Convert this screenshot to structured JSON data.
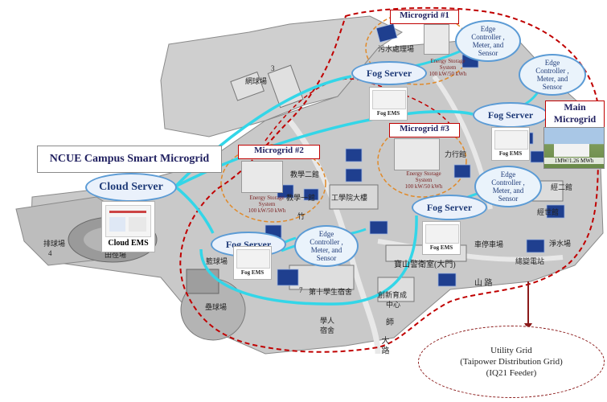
{
  "title": "NCUE Campus Smart Microgrid",
  "cloud": {
    "server": "Cloud Server",
    "ems": "Cloud EMS"
  },
  "fog_server_label": "Fog Server",
  "fog_ems_label": "Fog EMS",
  "microgrids": {
    "mg1": "Microgrid #1",
    "mg2": "Microgrid #2",
    "mg3": "Microgrid #3",
    "main": [
      "Main",
      "Microgrid"
    ]
  },
  "storage": {
    "mg1": [
      "Energy Storage",
      "System",
      "100 kW/50 kWh"
    ],
    "mg2": [
      "Energy Storage",
      "System",
      "100 kW/50 kWh"
    ],
    "mg3": [
      "Energy Storage",
      "System",
      "100 kW/50 kWh"
    ]
  },
  "edge_controller": [
    "Edge",
    "Controller ,",
    "Meter, and",
    "Sensor"
  ],
  "main_microgrid_caption": "1MW/1.26 MWh",
  "utility": [
    "Utility Grid",
    "(Taipower Distribution Grid)",
    "(IQ21 Feeder)"
  ],
  "map_labels": {
    "n3": "3",
    "n4": "4",
    "n5": "5",
    "n7": "7",
    "tennis": "網球場",
    "wastewater": "污水處理場",
    "admin": "力行館",
    "teach1": "教學一館",
    "teach2": "教學二館",
    "engineering": "工學院大樓",
    "dorm10": "第十學生宿舍",
    "baseball": "排球場",
    "track": "田徑場",
    "softball": "壘球場",
    "basketball": "籃球場",
    "innovation": [
      "創新育成",
      "中心"
    ],
    "student_dorm": [
      "學人",
      "宿舍"
    ],
    "gate": "寶山警衛室(大門)",
    "parking": "車停車場",
    "mountain_road": "山 路",
    "bamboo": "竹",
    "main_road": "大 路",
    "pump": "抽水站",
    "jinghua": "經世館",
    "jingyi": "經二館",
    "wash": "淨水場",
    "substation": "總變電站",
    "teacher": "師"
  },
  "colors": {
    "fog_link": "#33d6e8",
    "boundary": "#c00000",
    "microgrid_ring": "#e08a2a",
    "edge_link": "#2ea64a"
  }
}
